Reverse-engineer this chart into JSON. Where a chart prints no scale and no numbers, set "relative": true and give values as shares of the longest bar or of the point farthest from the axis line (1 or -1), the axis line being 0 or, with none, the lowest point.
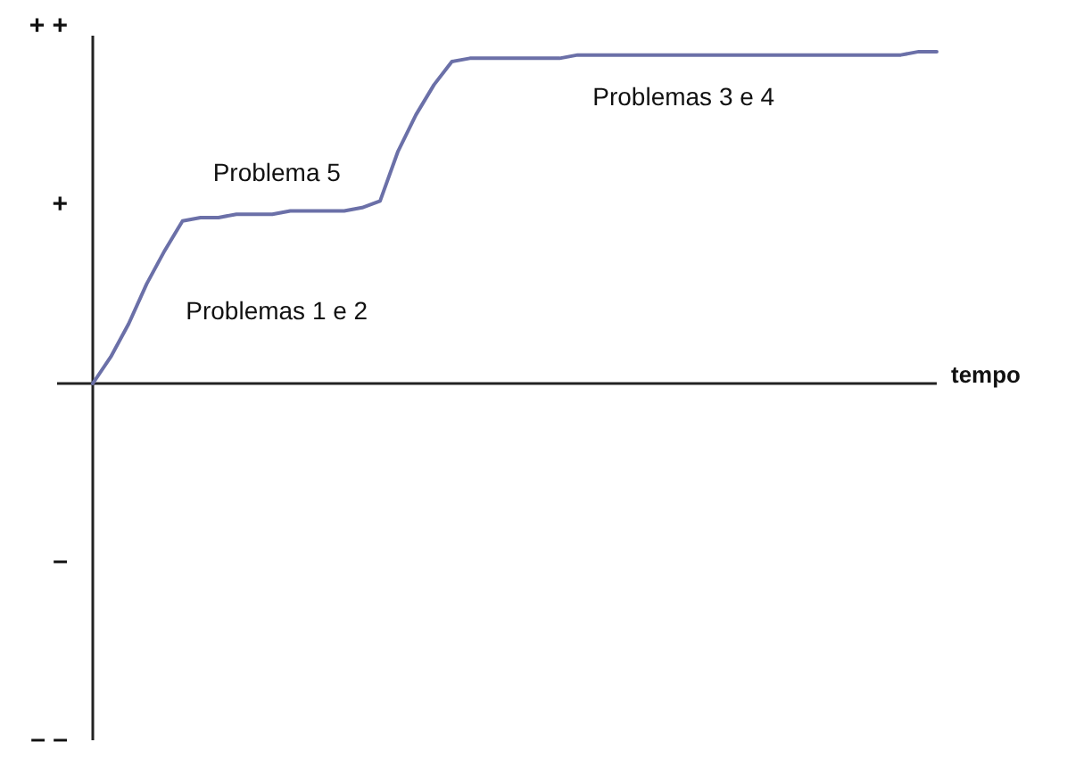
{
  "chart_data": {
    "type": "line",
    "xlabel": "tempo",
    "relative": true,
    "categories": [
      null,
      null,
      null,
      null,
      null,
      null,
      null,
      null,
      null,
      null,
      null,
      null,
      null,
      null,
      null,
      null,
      null,
      null,
      null,
      null,
      null,
      null,
      null,
      null,
      null,
      null,
      null,
      null,
      null,
      null,
      null,
      null,
      null,
      null,
      null,
      null,
      null,
      null,
      null,
      null,
      null,
      null,
      null,
      null,
      null,
      null,
      null,
      null
    ],
    "values": [
      0,
      0.08,
      0.18,
      0.3,
      0.4,
      0.49,
      0.5,
      0.5,
      0.51,
      0.51,
      0.51,
      0.52,
      0.52,
      0.52,
      0.52,
      0.53,
      0.55,
      0.7,
      0.81,
      0.9,
      0.97,
      0.98,
      0.98,
      0.98,
      0.98,
      0.98,
      0.98,
      0.99,
      0.99,
      0.99,
      0.99,
      0.99,
      0.99,
      0.99,
      0.99,
      0.99,
      0.99,
      0.99,
      0.99,
      0.99,
      0.99,
      0.99,
      0.99,
      0.99,
      0.99,
      0.99,
      1,
      1
    ],
    "color": "#6b70a8",
    "marker": "none",
    "line_style": "solid",
    "annotations": [
      "+ +",
      "+",
      "–",
      "– –",
      "Problemas 1 e 2",
      "Problema 5",
      "Problemas 3 e 4"
    ]
  }
}
